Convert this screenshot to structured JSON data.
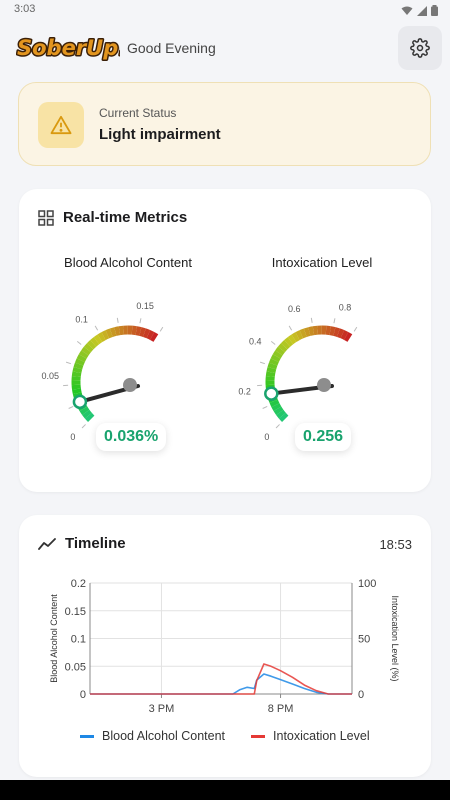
{
  "statusbar": {
    "time": "3:03"
  },
  "header": {
    "logo_text": "SoberUp!",
    "greeting": "Good Evening"
  },
  "icons": {
    "settings": "gear-icon",
    "warning": "warning-icon",
    "metrics": "dashboard-grid-icon",
    "timeline": "trend-line-icon"
  },
  "status": {
    "label": "Current Status",
    "value": "Light impairment",
    "accent": "#e6a817"
  },
  "metrics": {
    "title": "Real-time Metrics",
    "gauges": [
      {
        "title": "Blood Alcohol Content",
        "value_text": "0.036%",
        "value": 0.036,
        "min": 0,
        "max": 0.2,
        "ticks": [
          "0",
          "0.05",
          "0.1",
          "0.15"
        ]
      },
      {
        "title": "Intoxication Level",
        "value_text": "0.256",
        "value": 0.256,
        "min": 0,
        "max": 1.0,
        "ticks": [
          "0",
          "0.2",
          "0.4",
          "0.6",
          "0.8"
        ]
      }
    ],
    "value_color": "#19a36e"
  },
  "timeline": {
    "title": "Timeline",
    "time": "18:53",
    "legend": [
      {
        "label": "Blood Alcohol Content",
        "color": "#1e88e5"
      },
      {
        "label": "Intoxication Level",
        "color": "#e53935"
      }
    ]
  },
  "chart_data": {
    "type": "line",
    "x_ticks": [
      "3 PM",
      "8 PM"
    ],
    "y_left": {
      "label": "Blood Alcohol Content",
      "ticks": [
        "0",
        "0.05",
        "0.1",
        "0.15",
        "0.2"
      ],
      "lim": [
        0,
        0.2
      ]
    },
    "y_right": {
      "label": "Intoxication Level (%)",
      "ticks": [
        "0",
        "50",
        "100"
      ],
      "lim": [
        0,
        100
      ]
    },
    "x_hours": [
      12,
      13,
      14,
      15,
      16,
      17,
      18,
      18.3,
      18.6,
      18.9,
      19,
      19.3,
      19.6,
      20,
      20.5,
      21,
      21.5,
      22,
      23
    ],
    "series": [
      {
        "name": "Blood Alcohol Content",
        "axis": "left",
        "color": "#1e88e5",
        "values": [
          0,
          0,
          0,
          0,
          0,
          0,
          0,
          0.008,
          0.012,
          0.01,
          0.025,
          0.036,
          0.032,
          0.026,
          0.018,
          0.01,
          0.003,
          0,
          0
        ]
      },
      {
        "name": "Intoxication Level",
        "axis": "right",
        "color": "#e53935",
        "values": [
          0,
          0,
          0,
          0,
          0,
          0,
          0,
          0,
          0,
          0,
          12,
          27,
          25,
          21,
          15,
          8,
          3,
          0,
          0
        ]
      }
    ],
    "grid": true
  }
}
